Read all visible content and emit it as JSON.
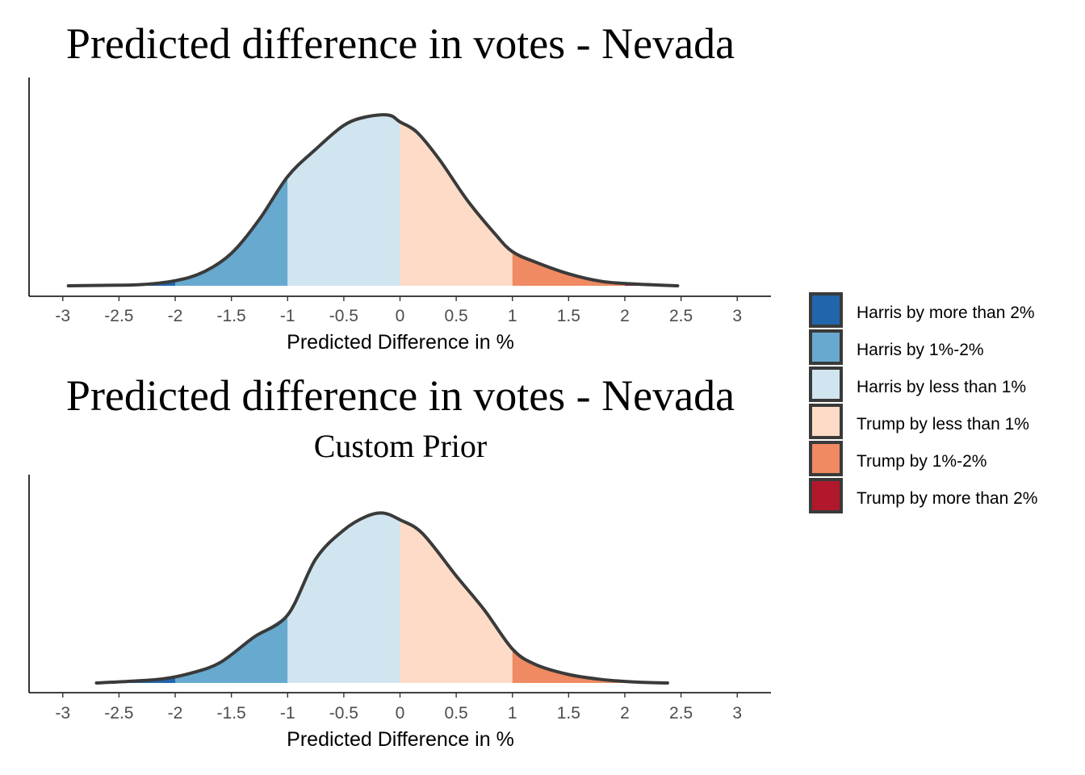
{
  "chart_data": [
    {
      "type": "area",
      "title": "Predicted difference in votes - Nevada",
      "subtitle": "",
      "xlabel": "Predicted Difference in %",
      "ylabel": "",
      "xlim": [
        -3.3,
        3.3
      ],
      "x_ticks": [
        -3,
        -2.5,
        -2,
        -1.5,
        -1,
        -0.5,
        0,
        0.5,
        1,
        1.5,
        2,
        2.5,
        3
      ],
      "x_tick_labels": [
        "-3",
        "-2.5",
        "-2",
        "-1.5",
        "-1",
        "-0.5",
        "0",
        "0.5",
        "1",
        "1.5",
        "2",
        "2.5",
        "3"
      ],
      "density": {
        "x": [
          -2.95,
          -2.6,
          -2.3,
          -2.0,
          -1.75,
          -1.5,
          -1.25,
          -1.0,
          -0.75,
          -0.5,
          -0.3,
          -0.1,
          0.0,
          0.15,
          0.35,
          0.6,
          0.85,
          1.0,
          1.2,
          1.5,
          1.8,
          2.1,
          2.47
        ],
        "y": [
          0.0,
          0.003,
          0.007,
          0.03,
          0.08,
          0.19,
          0.39,
          0.64,
          0.8,
          0.94,
          0.99,
          1.0,
          0.96,
          0.9,
          0.74,
          0.5,
          0.3,
          0.2,
          0.14,
          0.07,
          0.025,
          0.01,
          0.0
        ]
      },
      "ylim": [
        0,
        1.05
      ]
    },
    {
      "type": "area",
      "title": "Predicted difference in votes - Nevada",
      "subtitle": "Custom Prior",
      "xlabel": "Predicted Difference in %",
      "ylabel": "",
      "xlim": [
        -3.3,
        3.3
      ],
      "x_ticks": [
        -3,
        -2.5,
        -2,
        -1.5,
        -1,
        -0.5,
        0,
        0.5,
        1,
        1.5,
        2,
        2.5,
        3
      ],
      "x_tick_labels": [
        "-3",
        "-2.5",
        "-2",
        "-1.5",
        "-1",
        "-0.5",
        "0",
        "0.5",
        "1",
        "1.5",
        "2",
        "2.5",
        "3"
      ],
      "density": {
        "x": [
          -2.7,
          -2.4,
          -2.1,
          -1.85,
          -1.6,
          -1.3,
          -1.0,
          -0.75,
          -0.5,
          -0.3,
          -0.15,
          0.0,
          0.2,
          0.5,
          0.75,
          1.0,
          1.2,
          1.5,
          1.8,
          2.1,
          2.38
        ],
        "y": [
          0.0,
          0.01,
          0.025,
          0.06,
          0.12,
          0.27,
          0.4,
          0.73,
          0.9,
          0.98,
          1.0,
          0.96,
          0.88,
          0.63,
          0.43,
          0.2,
          0.11,
          0.05,
          0.02,
          0.005,
          0.0
        ]
      },
      "ylim": [
        0,
        1.05
      ]
    }
  ],
  "legend": {
    "placement": "right",
    "items": [
      {
        "label": "Harris by more than 2%",
        "color": "#2166ac",
        "range": [
          -100,
          -2
        ]
      },
      {
        "label": "Harris by 1%-2%",
        "color": "#67a9cf",
        "range": [
          -2,
          -1
        ]
      },
      {
        "label": "Harris by less than 1%",
        "color": "#d1e5f0",
        "range": [
          -1,
          0
        ]
      },
      {
        "label": "Trump by less than 1%",
        "color": "#fddbc7",
        "range": [
          0,
          1
        ]
      },
      {
        "label": "Trump by 1%-2%",
        "color": "#ef8a62",
        "range": [
          1,
          2
        ]
      },
      {
        "label": "Trump by more than 2%",
        "color": "#b2182b",
        "range": [
          2,
          100
        ]
      }
    ]
  },
  "colors": {
    "outline": "#3a3a3a",
    "legend_border": "#3a3a3a"
  }
}
